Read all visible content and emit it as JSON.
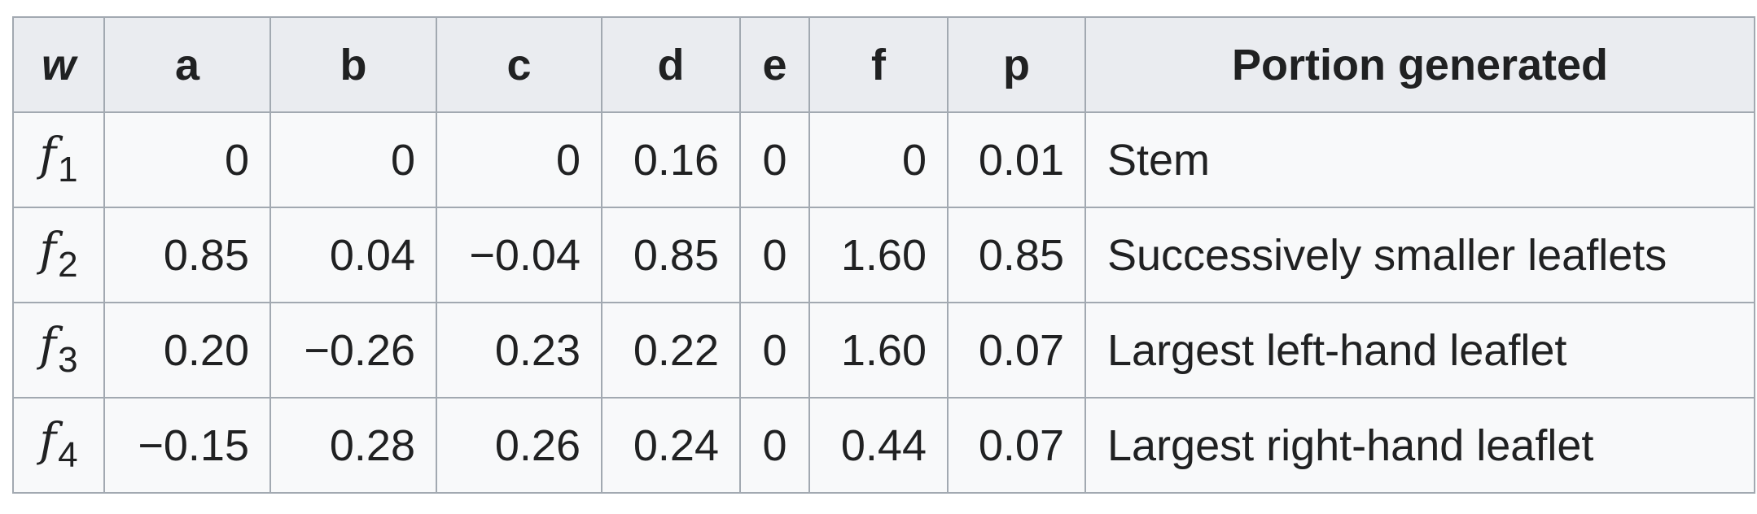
{
  "table": {
    "headers": [
      "w",
      "a",
      "b",
      "c",
      "d",
      "e",
      "f",
      "p",
      "Portion generated"
    ],
    "rows": [
      {
        "fn_letter": "f",
        "fn_sub": "1",
        "a": "0",
        "b": "0",
        "c": "0",
        "d": "0.16",
        "e": "0",
        "f": "0",
        "p": "0.01",
        "portion": "Stem"
      },
      {
        "fn_letter": "f",
        "fn_sub": "2",
        "a": "0.85",
        "b": "0.04",
        "c": "−0.04",
        "d": "0.85",
        "e": "0",
        "f": "1.60",
        "p": "0.85",
        "portion": "Successively smaller leaflets"
      },
      {
        "fn_letter": "f",
        "fn_sub": "3",
        "a": "0.20",
        "b": "−0.26",
        "c": "0.23",
        "d": "0.22",
        "e": "0",
        "f": "1.60",
        "p": "0.07",
        "portion": "Largest left-hand leaflet"
      },
      {
        "fn_letter": "f",
        "fn_sub": "4",
        "a": "−0.15",
        "b": "0.28",
        "c": "0.26",
        "d": "0.24",
        "e": "0",
        "f": "0.44",
        "p": "0.07",
        "portion": "Largest right-hand leaflet"
      }
    ]
  }
}
